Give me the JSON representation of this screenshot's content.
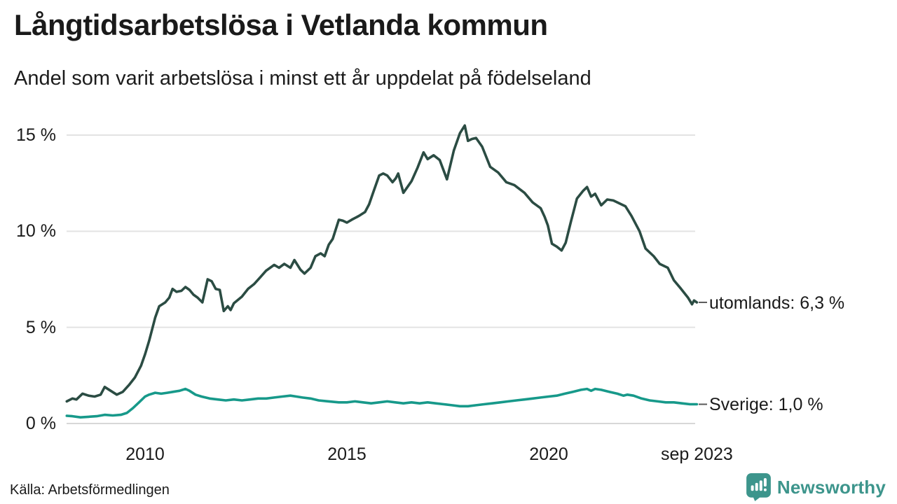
{
  "header": {
    "title": "Långtidsarbetslösa i Vetlanda kommun",
    "subtitle": "Andel som varit arbetslösa i minst ett år uppdelat på födelseland"
  },
  "footer": {
    "source": "Källa: Arbetsförmedlingen",
    "brand": "Newsworthy"
  },
  "colors": {
    "text": "#1a1a1a",
    "grid": "#e3e3e3",
    "zero_grid": "#d8d8d8",
    "end_tick_dash": "#595959",
    "brand_teal": "#3d958c",
    "series_utomlands": "#2b4c43",
    "series_sverige": "#17998a"
  },
  "chart_data": {
    "type": "line",
    "title": "Långtidsarbetslösa i Vetlanda kommun",
    "subtitle": "Andel som varit arbetslösa i minst ett år uppdelat på födelseland",
    "unit": "%",
    "grid": "horizontal-only",
    "legend_position": "end-of-line-labels",
    "x_domain_years": [
      2008.06,
      2023.67
    ],
    "y_domain": [
      0,
      15.6
    ],
    "y_ticks": [
      {
        "value": 0,
        "label": "0 %"
      },
      {
        "value": 5,
        "label": "5 %"
      },
      {
        "value": 10,
        "label": "10 %"
      },
      {
        "value": 15,
        "label": "15 %"
      }
    ],
    "x_ticks": [
      {
        "year": 2010,
        "label": "2010"
      },
      {
        "year": 2015,
        "label": "2015"
      },
      {
        "year": 2020,
        "label": "2020"
      },
      {
        "year": 2023.67,
        "label": "sep 2023"
      }
    ],
    "series": [
      {
        "name": "utomlands",
        "end_label": "utomlands: 6,3 %",
        "end_value": 6.3,
        "color": "#2b4c43",
        "points": [
          [
            2008.06,
            1.15
          ],
          [
            2008.2,
            1.3
          ],
          [
            2008.3,
            1.25
          ],
          [
            2008.45,
            1.55
          ],
          [
            2008.6,
            1.45
          ],
          [
            2008.75,
            1.4
          ],
          [
            2008.9,
            1.5
          ],
          [
            2009.0,
            1.9
          ],
          [
            2009.15,
            1.7
          ],
          [
            2009.3,
            1.5
          ],
          [
            2009.45,
            1.65
          ],
          [
            2009.6,
            2.0
          ],
          [
            2009.75,
            2.4
          ],
          [
            2009.9,
            3.0
          ],
          [
            2010.0,
            3.6
          ],
          [
            2010.1,
            4.3
          ],
          [
            2010.25,
            5.5
          ],
          [
            2010.35,
            6.1
          ],
          [
            2010.5,
            6.3
          ],
          [
            2010.6,
            6.55
          ],
          [
            2010.68,
            7.0
          ],
          [
            2010.78,
            6.85
          ],
          [
            2010.9,
            6.9
          ],
          [
            2011.0,
            7.1
          ],
          [
            2011.1,
            6.95
          ],
          [
            2011.2,
            6.7
          ],
          [
            2011.3,
            6.55
          ],
          [
            2011.42,
            6.3
          ],
          [
            2011.55,
            7.5
          ],
          [
            2011.65,
            7.4
          ],
          [
            2011.75,
            7.0
          ],
          [
            2011.85,
            6.95
          ],
          [
            2011.95,
            5.85
          ],
          [
            2012.05,
            6.1
          ],
          [
            2012.12,
            5.9
          ],
          [
            2012.2,
            6.25
          ],
          [
            2012.4,
            6.6
          ],
          [
            2012.55,
            7.0
          ],
          [
            2012.7,
            7.25
          ],
          [
            2012.85,
            7.6
          ],
          [
            2013.0,
            7.95
          ],
          [
            2013.2,
            8.25
          ],
          [
            2013.32,
            8.1
          ],
          [
            2013.45,
            8.3
          ],
          [
            2013.6,
            8.1
          ],
          [
            2013.7,
            8.5
          ],
          [
            2013.85,
            8.0
          ],
          [
            2013.95,
            7.8
          ],
          [
            2014.1,
            8.1
          ],
          [
            2014.22,
            8.7
          ],
          [
            2014.35,
            8.85
          ],
          [
            2014.45,
            8.7
          ],
          [
            2014.55,
            9.3
          ],
          [
            2014.65,
            9.6
          ],
          [
            2014.8,
            10.6
          ],
          [
            2014.9,
            10.55
          ],
          [
            2015.0,
            10.45
          ],
          [
            2015.12,
            10.6
          ],
          [
            2015.3,
            10.8
          ],
          [
            2015.45,
            11.0
          ],
          [
            2015.55,
            11.4
          ],
          [
            2015.65,
            12.0
          ],
          [
            2015.8,
            12.9
          ],
          [
            2015.9,
            13.0
          ],
          [
            2016.0,
            12.9
          ],
          [
            2016.13,
            12.55
          ],
          [
            2016.21,
            12.75
          ],
          [
            2016.27,
            13.0
          ],
          [
            2016.4,
            12.0
          ],
          [
            2016.5,
            12.3
          ],
          [
            2016.6,
            12.6
          ],
          [
            2016.75,
            13.3
          ],
          [
            2016.9,
            14.1
          ],
          [
            2017.0,
            13.75
          ],
          [
            2017.15,
            13.95
          ],
          [
            2017.3,
            13.7
          ],
          [
            2017.48,
            12.7
          ],
          [
            2017.65,
            14.2
          ],
          [
            2017.8,
            15.1
          ],
          [
            2017.92,
            15.5
          ],
          [
            2018.0,
            14.7
          ],
          [
            2018.1,
            14.8
          ],
          [
            2018.2,
            14.85
          ],
          [
            2018.35,
            14.4
          ],
          [
            2018.55,
            13.35
          ],
          [
            2018.75,
            13.05
          ],
          [
            2018.95,
            12.55
          ],
          [
            2019.15,
            12.4
          ],
          [
            2019.4,
            12.0
          ],
          [
            2019.6,
            11.5
          ],
          [
            2019.8,
            11.2
          ],
          [
            2019.9,
            10.75
          ],
          [
            2019.98,
            10.3
          ],
          [
            2020.08,
            9.35
          ],
          [
            2020.2,
            9.2
          ],
          [
            2020.32,
            9.0
          ],
          [
            2020.42,
            9.4
          ],
          [
            2020.55,
            10.5
          ],
          [
            2020.7,
            11.7
          ],
          [
            2020.85,
            12.1
          ],
          [
            2020.95,
            12.3
          ],
          [
            2021.05,
            11.8
          ],
          [
            2021.15,
            11.95
          ],
          [
            2021.3,
            11.35
          ],
          [
            2021.45,
            11.65
          ],
          [
            2021.6,
            11.6
          ],
          [
            2021.75,
            11.45
          ],
          [
            2021.9,
            11.3
          ],
          [
            2022.05,
            10.8
          ],
          [
            2022.25,
            10.0
          ],
          [
            2022.4,
            9.1
          ],
          [
            2022.6,
            8.7
          ],
          [
            2022.75,
            8.3
          ],
          [
            2022.95,
            8.1
          ],
          [
            2023.1,
            7.45
          ],
          [
            2023.28,
            7.0
          ],
          [
            2023.45,
            6.55
          ],
          [
            2023.55,
            6.2
          ],
          [
            2023.6,
            6.4
          ],
          [
            2023.67,
            6.3
          ]
        ]
      },
      {
        "name": "Sverige",
        "end_label": "Sverige: 1,0 %",
        "end_value": 1.0,
        "color": "#17998a",
        "points": [
          [
            2008.06,
            0.4
          ],
          [
            2008.2,
            0.38
          ],
          [
            2008.4,
            0.32
          ],
          [
            2008.6,
            0.35
          ],
          [
            2008.8,
            0.38
          ],
          [
            2009.0,
            0.45
          ],
          [
            2009.2,
            0.42
          ],
          [
            2009.4,
            0.45
          ],
          [
            2009.55,
            0.55
          ],
          [
            2009.7,
            0.8
          ],
          [
            2009.85,
            1.1
          ],
          [
            2010.0,
            1.4
          ],
          [
            2010.1,
            1.5
          ],
          [
            2010.25,
            1.6
          ],
          [
            2010.4,
            1.55
          ],
          [
            2010.55,
            1.6
          ],
          [
            2010.7,
            1.65
          ],
          [
            2010.85,
            1.7
          ],
          [
            2011.0,
            1.8
          ],
          [
            2011.1,
            1.7
          ],
          [
            2011.25,
            1.5
          ],
          [
            2011.4,
            1.4
          ],
          [
            2011.6,
            1.3
          ],
          [
            2011.8,
            1.25
          ],
          [
            2012.0,
            1.2
          ],
          [
            2012.2,
            1.25
          ],
          [
            2012.4,
            1.2
          ],
          [
            2012.6,
            1.25
          ],
          [
            2012.8,
            1.3
          ],
          [
            2013.0,
            1.3
          ],
          [
            2013.2,
            1.35
          ],
          [
            2013.4,
            1.4
          ],
          [
            2013.6,
            1.45
          ],
          [
            2013.75,
            1.4
          ],
          [
            2013.9,
            1.35
          ],
          [
            2014.1,
            1.3
          ],
          [
            2014.3,
            1.2
          ],
          [
            2014.55,
            1.15
          ],
          [
            2014.8,
            1.1
          ],
          [
            2015.0,
            1.1
          ],
          [
            2015.2,
            1.15
          ],
          [
            2015.4,
            1.1
          ],
          [
            2015.6,
            1.05
          ],
          [
            2015.8,
            1.1
          ],
          [
            2016.0,
            1.15
          ],
          [
            2016.2,
            1.1
          ],
          [
            2016.4,
            1.05
          ],
          [
            2016.6,
            1.1
          ],
          [
            2016.8,
            1.05
          ],
          [
            2017.0,
            1.1
          ],
          [
            2017.2,
            1.05
          ],
          [
            2017.4,
            1.0
          ],
          [
            2017.6,
            0.95
          ],
          [
            2017.8,
            0.9
          ],
          [
            2018.0,
            0.9
          ],
          [
            2018.2,
            0.95
          ],
          [
            2018.4,
            1.0
          ],
          [
            2018.6,
            1.05
          ],
          [
            2018.8,
            1.1
          ],
          [
            2019.0,
            1.15
          ],
          [
            2019.2,
            1.2
          ],
          [
            2019.4,
            1.25
          ],
          [
            2019.6,
            1.3
          ],
          [
            2019.8,
            1.35
          ],
          [
            2020.0,
            1.4
          ],
          [
            2020.2,
            1.45
          ],
          [
            2020.4,
            1.55
          ],
          [
            2020.6,
            1.65
          ],
          [
            2020.8,
            1.75
          ],
          [
            2020.95,
            1.8
          ],
          [
            2021.05,
            1.7
          ],
          [
            2021.15,
            1.8
          ],
          [
            2021.3,
            1.75
          ],
          [
            2021.5,
            1.65
          ],
          [
            2021.7,
            1.55
          ],
          [
            2021.85,
            1.45
          ],
          [
            2021.95,
            1.5
          ],
          [
            2022.1,
            1.45
          ],
          [
            2022.3,
            1.3
          ],
          [
            2022.5,
            1.2
          ],
          [
            2022.7,
            1.15
          ],
          [
            2022.9,
            1.1
          ],
          [
            2023.1,
            1.1
          ],
          [
            2023.3,
            1.05
          ],
          [
            2023.5,
            1.0
          ],
          [
            2023.67,
            1.0
          ]
        ]
      }
    ]
  }
}
